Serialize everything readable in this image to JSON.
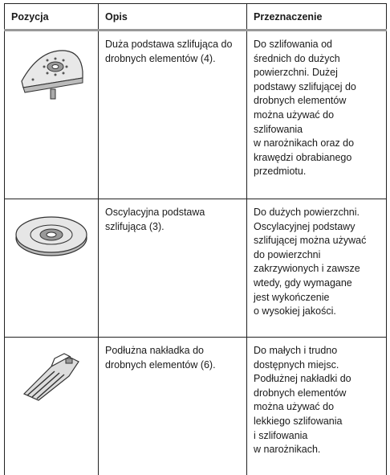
{
  "table": {
    "header": [
      "Pozycja",
      "Opis",
      "Przeznaczenie"
    ],
    "rows": [
      {
        "description": [
          "Duża podstawa szlifująca do",
          "drobnych elementów (4)."
        ],
        "purpose": [
          "Do szlifowania od",
          "średnich do dużych",
          "powierzchni. Dużej",
          "podstawy szlifującej do",
          "drobnych elementów",
          "można używać do",
          "szlifowania",
          "w narożnikach oraz do",
          "krawędzi obrabianego",
          "przedmiotu."
        ]
      },
      {
        "description": [
          "Oscylacyjna podstawa",
          "szlifująca (3)."
        ],
        "purpose": [
          "Do dużych powierzchni.",
          "Oscylacyjnej podstawy",
          "szlifującej można używać",
          "do powierzchni",
          "zakrzywionych i zawsze",
          "wtedy, gdy wymagane",
          "jest wykończenie",
          "o wysokiej jakości."
        ]
      },
      {
        "description": [
          "Podłużna nakładka do",
          "drobnych elementów (6)."
        ],
        "purpose": [
          "Do małych i trudno",
          "dostępnych miejsc.",
          "Podłużnej nakładki do",
          "drobnych elementów",
          "można używać do",
          "lekkiego szlifowania",
          "i szlifowania",
          "w narożnikach."
        ]
      }
    ]
  }
}
